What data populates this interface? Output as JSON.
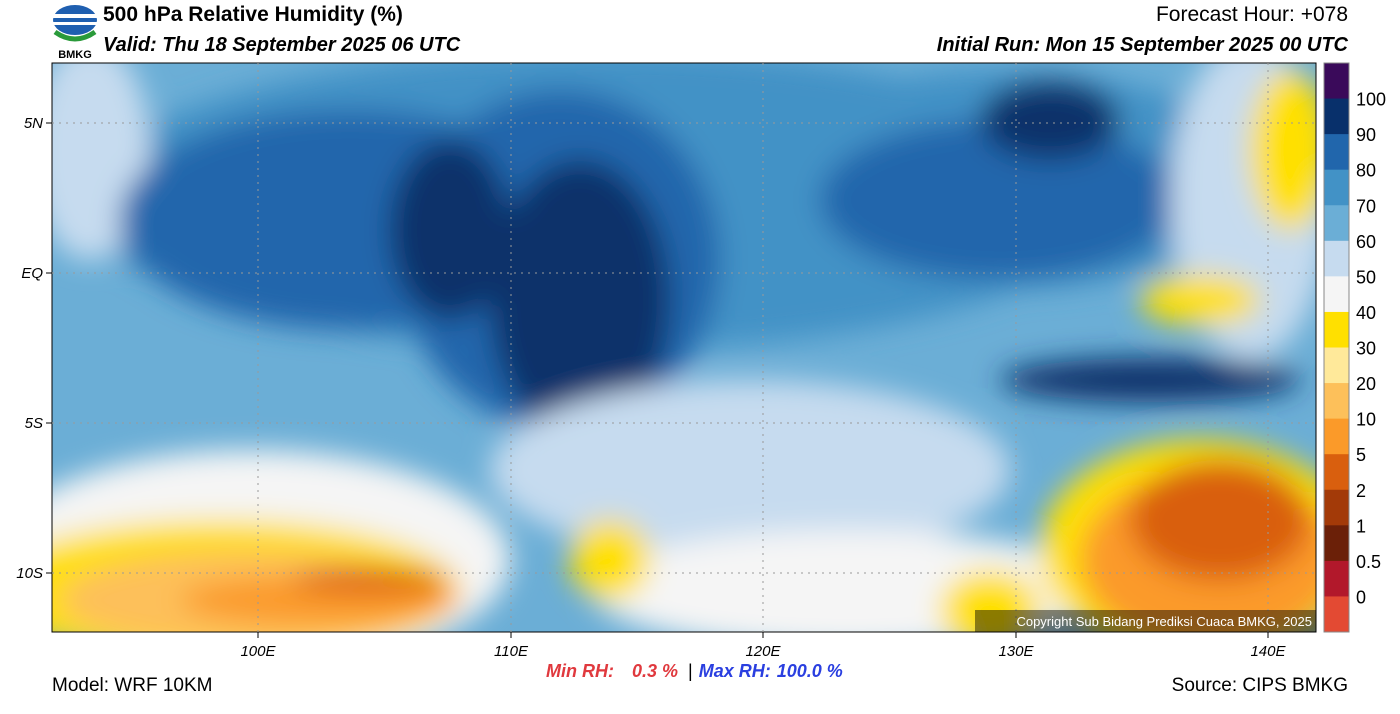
{
  "header": {
    "title": "500 hPa Relative Humidity (%)",
    "valid": "Valid: Thu 18 September 2025 06 UTC",
    "forecast_hour": "Forecast Hour: +078",
    "initial_run": "Initial Run: Mon 15 September 2025 00 UTC",
    "logo_text": "BMKG"
  },
  "map": {
    "lat_labels": [
      "5N",
      "EQ",
      "5S",
      "10S"
    ],
    "lon_labels": [
      "100E",
      "110E",
      "120E",
      "130E",
      "140E"
    ],
    "copyright": "Copyright Sub Bidang Prediksi Cuaca BMKG, 2025"
  },
  "colorbar": {
    "labels": [
      "100",
      "90",
      "80",
      "70",
      "60",
      "50",
      "40",
      "30",
      "20",
      "10",
      "5",
      "2",
      "1",
      "0.5",
      "0"
    ],
    "colors": [
      "#3a0a5a",
      "#08306b",
      "#2166ac",
      "#4292c6",
      "#6baed6",
      "#c6dbef",
      "#f5f5f5",
      "#ffe000",
      "#ffe99a",
      "#fdc05a",
      "#fb9a29",
      "#d95f0e",
      "#a33a08",
      "#6b2008",
      "#b2182b",
      "#e34a33"
    ]
  },
  "footer": {
    "model": "Model: WRF 10KM",
    "min_label": "Min RH:",
    "min_value": "0.3 %",
    "separator": "|",
    "max_label": "Max RH:",
    "max_value": "100.0 %",
    "source": "Source: CIPS BMKG"
  }
}
